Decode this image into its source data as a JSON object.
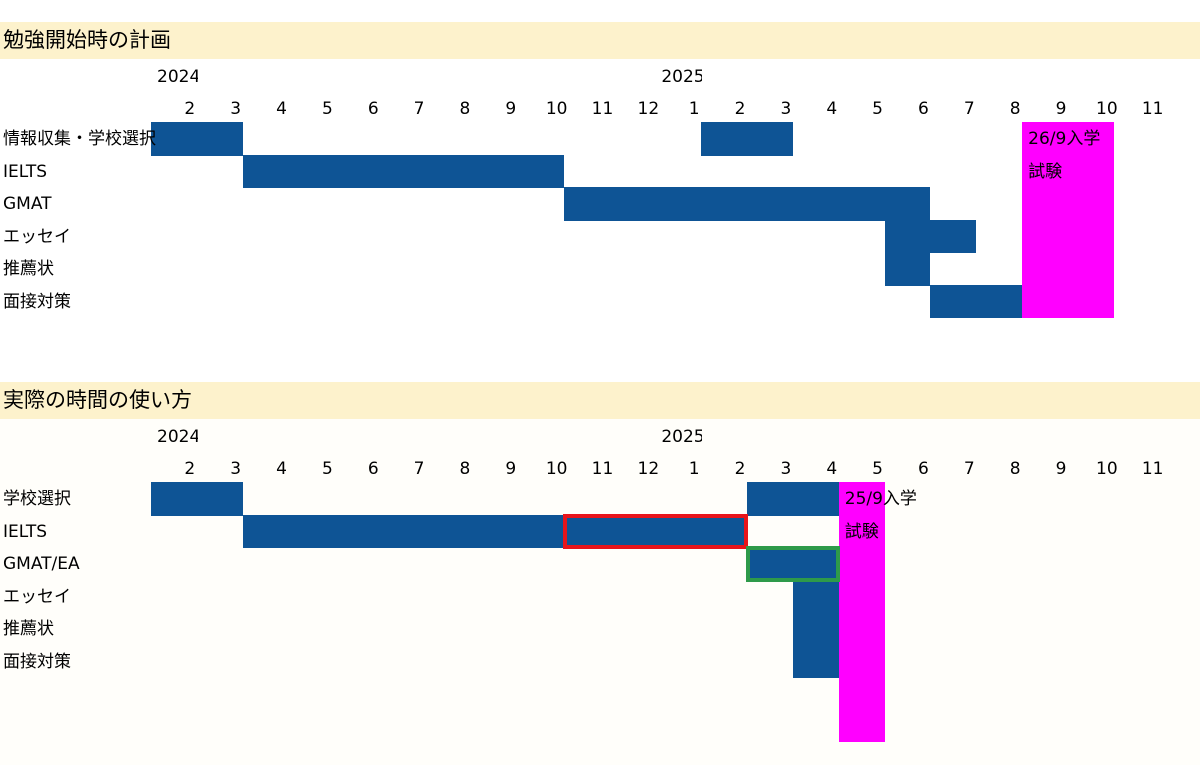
{
  "chart_data": [
    {
      "type": "gantt",
      "title": "勉強開始時の計画",
      "years": [
        {
          "label": "2024",
          "month_index": 0
        },
        {
          "label": "2025",
          "month_index": 11
        }
      ],
      "months": [
        "2",
        "3",
        "4",
        "5",
        "6",
        "7",
        "8",
        "9",
        "10",
        "11",
        "12",
        "1",
        "2",
        "3",
        "4",
        "5",
        "6",
        "7",
        "8",
        "9",
        "10",
        "11"
      ],
      "rows": [
        "情報収集・学校選択",
        "IELTS",
        "GMAT",
        "エッセイ",
        "推薦状",
        "面接対策"
      ],
      "tasks": [
        {
          "row": 0,
          "start": 0,
          "end": 2
        },
        {
          "row": 0,
          "start": 12,
          "end": 14
        },
        {
          "row": 1,
          "start": 2,
          "end": 9
        },
        {
          "row": 2,
          "start": 9,
          "end": 17
        },
        {
          "row": 3,
          "start": 16,
          "end": 18
        },
        {
          "row": 4,
          "start": 16,
          "end": 17
        },
        {
          "row": 5,
          "start": 17,
          "end": 19
        }
      ],
      "milestone": {
        "start": 19,
        "end": 21,
        "rows": [
          0,
          5
        ],
        "line1": "26/9入学",
        "line2": "試験",
        "color": "#ff00ff"
      },
      "bar_color": "#0e5495"
    },
    {
      "type": "gantt",
      "title": "実際の時間の使い方",
      "years": [
        {
          "label": "2024",
          "month_index": 0
        },
        {
          "label": "2025",
          "month_index": 11
        }
      ],
      "months": [
        "2",
        "3",
        "4",
        "5",
        "6",
        "7",
        "8",
        "9",
        "10",
        "11",
        "12",
        "1",
        "2",
        "3",
        "4",
        "5",
        "6",
        "7",
        "8",
        "9",
        "10",
        "11"
      ],
      "rows": [
        "学校選択",
        "IELTS",
        "GMAT/EA",
        "エッセイ",
        "推薦状",
        "面接対策"
      ],
      "tasks": [
        {
          "row": 0,
          "start": 0,
          "end": 2
        },
        {
          "row": 0,
          "start": 13,
          "end": 15
        },
        {
          "row": 1,
          "start": 2,
          "end": 13
        },
        {
          "row": 2,
          "start": 13,
          "end": 15
        },
        {
          "row": 3,
          "start": 14,
          "end": 15
        },
        {
          "row": 4,
          "start": 14,
          "end": 15
        },
        {
          "row": 5,
          "start": 14,
          "end": 15
        }
      ],
      "highlights": [
        {
          "row": 1,
          "start": 9,
          "end": 13,
          "color": "#e8141b"
        },
        {
          "row": 2,
          "start": 13,
          "end": 15,
          "color": "#2e9a4a"
        }
      ],
      "milestone": {
        "start": 15,
        "end": 16,
        "rows": [
          0,
          7
        ],
        "line1": "25/9入学",
        "line2": "試験",
        "color": "#ff00ff"
      },
      "bar_color": "#0e5495"
    }
  ]
}
